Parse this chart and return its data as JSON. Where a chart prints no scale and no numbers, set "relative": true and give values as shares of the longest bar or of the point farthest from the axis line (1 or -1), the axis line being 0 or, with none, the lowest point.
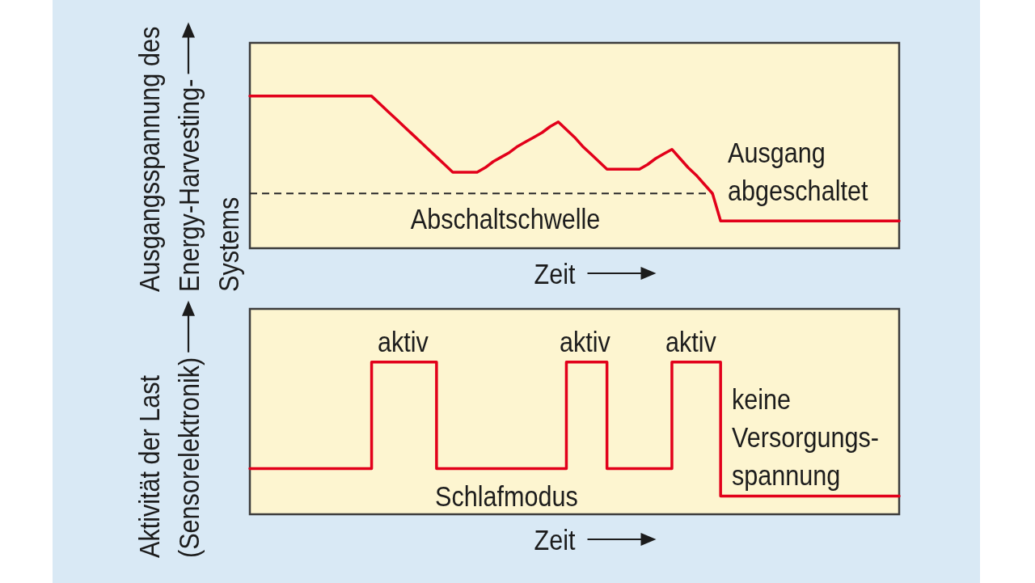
{
  "chart_data": [
    {
      "type": "line",
      "xlabel": "Zeit",
      "ylabel": "Ausgangsspannung des\nEnergy-Harvesting-\nSystems",
      "relative": true,
      "categories": [
        null,
        null,
        null,
        null,
        null,
        null,
        null,
        null,
        null,
        null,
        null,
        null,
        null,
        null,
        null,
        null,
        null,
        null,
        null,
        null,
        null,
        null,
        null,
        null,
        null,
        null,
        null,
        null,
        null,
        null,
        null,
        null,
        null,
        null,
        null,
        null,
        null,
        null,
        null,
        null,
        null,
        null,
        null,
        null,
        null,
        null,
        null,
        null,
        null,
        null,
        null,
        null,
        null,
        null,
        null,
        null,
        null,
        null,
        null,
        null,
        null,
        null,
        null,
        null,
        null,
        null,
        null,
        null,
        null,
        null,
        null,
        null,
        null,
        null,
        null,
        null,
        null,
        null,
        null,
        null,
        null
      ],
      "series": [
        {
          "color": "#e2001a",
          "values": [
            1,
            1,
            1,
            1,
            1,
            1,
            1,
            1,
            1,
            1,
            1,
            1,
            1,
            1,
            1,
            1,
            0.95,
            0.9,
            0.85,
            0.8,
            0.75,
            0.7,
            0.65,
            0.6,
            0.55,
            0.5,
            0.5,
            0.5,
            0.5,
            0.53,
            0.57,
            0.6,
            0.63,
            0.67,
            0.7,
            0.73,
            0.76,
            0.8,
            0.83,
            0.78,
            0.73,
            0.67,
            0.62,
            0.57,
            0.52,
            0.52,
            0.52,
            0.52,
            0.52,
            0.55,
            0.59,
            0.62,
            0.65,
            0.59,
            0.53,
            0.48,
            0.42,
            0.36,
            0.18,
            0.18,
            0.18,
            0.18,
            0.18,
            0.18,
            0.18,
            0.18,
            0.18,
            0.18,
            0.18,
            0.18,
            0.18,
            0.18,
            0.18,
            0.18,
            0.18,
            0.18,
            0.18,
            0.18,
            0.18,
            0.18,
            0.18
          ]
        }
      ],
      "ref_lines": [
        {
          "axis": "y",
          "value": 0.36,
          "label": "Abschaltschwelle",
          "color": "#2b2b2b",
          "line_style": "dashed"
        }
      ],
      "annotations": [
        "Ausgang\nabgeschaltet"
      ]
    },
    {
      "type": "step",
      "xlabel": "Zeit",
      "ylabel": "Aktivität der Last\n(Sensorelektronik)",
      "relative": true,
      "categories": [
        null,
        null,
        null,
        null,
        null,
        null,
        null,
        null,
        null,
        null,
        null,
        null,
        null,
        null,
        null,
        null,
        null,
        null,
        null,
        null,
        null,
        null,
        null,
        null,
        null,
        null,
        null,
        null,
        null,
        null,
        null,
        null,
        null,
        null,
        null,
        null,
        null,
        null,
        null,
        null,
        null,
        null,
        null,
        null,
        null,
        null,
        null,
        null,
        null,
        null,
        null,
        null,
        null,
        null,
        null,
        null,
        null,
        null,
        null,
        null,
        null,
        null,
        null,
        null,
        null,
        null,
        null,
        null,
        null,
        null,
        null,
        null,
        null,
        null,
        null,
        null,
        null,
        null,
        null,
        null,
        null
      ],
      "series": [
        {
          "color": "#e2001a",
          "values": [
            0.3,
            0.3,
            0.3,
            0.3,
            0.3,
            0.3,
            0.3,
            0.3,
            0.3,
            0.3,
            0.3,
            0.3,
            0.3,
            0.3,
            0.3,
            1,
            1,
            1,
            1,
            1,
            1,
            1,
            1,
            0.3,
            0.3,
            0.3,
            0.3,
            0.3,
            0.3,
            0.3,
            0.3,
            0.3,
            0.3,
            0.3,
            0.3,
            0.3,
            0.3,
            0.3,
            0.3,
            1,
            1,
            1,
            1,
            1,
            0.3,
            0.3,
            0.3,
            0.3,
            0.3,
            0.3,
            0.3,
            0.3,
            1,
            1,
            1,
            1,
            1,
            1,
            0.12,
            0.12,
            0.12,
            0.12,
            0.12,
            0.12,
            0.12,
            0.12,
            0.12,
            0.12,
            0.12,
            0.12,
            0.12,
            0.12,
            0.12,
            0.12,
            0.12,
            0.12,
            0.12,
            0.12,
            0.12,
            0.12,
            0.12
          ]
        }
      ],
      "annotations": [
        "aktiv",
        "aktiv",
        "aktiv",
        "Schlafmodus",
        "keine\nVersorgungs-\nspannung"
      ]
    }
  ]
}
